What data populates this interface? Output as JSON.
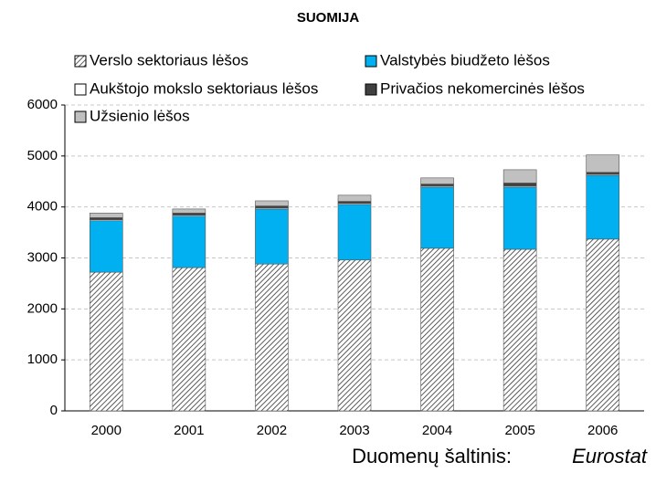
{
  "chart_data": {
    "type": "stacked_bar",
    "title": "SUOMIJA",
    "categories": [
      "2000",
      "2001",
      "2002",
      "2003",
      "2004",
      "2005",
      "2006"
    ],
    "series": [
      {
        "name": "Verslo sektoriaus lėšos",
        "color": "url(#hatch)",
        "values": [
          2720,
          2810,
          2880,
          2960,
          3190,
          3170,
          3370
        ]
      },
      {
        "name": "Valstybės biudžeto lėšos",
        "color": "#00b0f0",
        "values": [
          1010,
          1010,
          1080,
          1090,
          1200,
          1220,
          1250
        ]
      },
      {
        "name": "Aukštojo mokslo sektoriaus lėšos",
        "color": "#ffffff",
        "values": [
          20,
          20,
          20,
          20,
          20,
          20,
          20
        ]
      },
      {
        "name": "Privačios nekomercinės lėšos",
        "color": "#404040",
        "values": [
          40,
          40,
          40,
          40,
          40,
          60,
          40
        ]
      },
      {
        "name": "Užsienio lėšos",
        "color": "#c0c0c0",
        "values": [
          90,
          80,
          100,
          120,
          120,
          260,
          340
        ]
      }
    ],
    "ylim": [
      0,
      6000
    ],
    "yticks": [
      0,
      1000,
      2000,
      3000,
      4000,
      5000,
      6000
    ],
    "grid": true,
    "source_label": "Duomenų šaltinis:",
    "source": "Eurostat"
  }
}
